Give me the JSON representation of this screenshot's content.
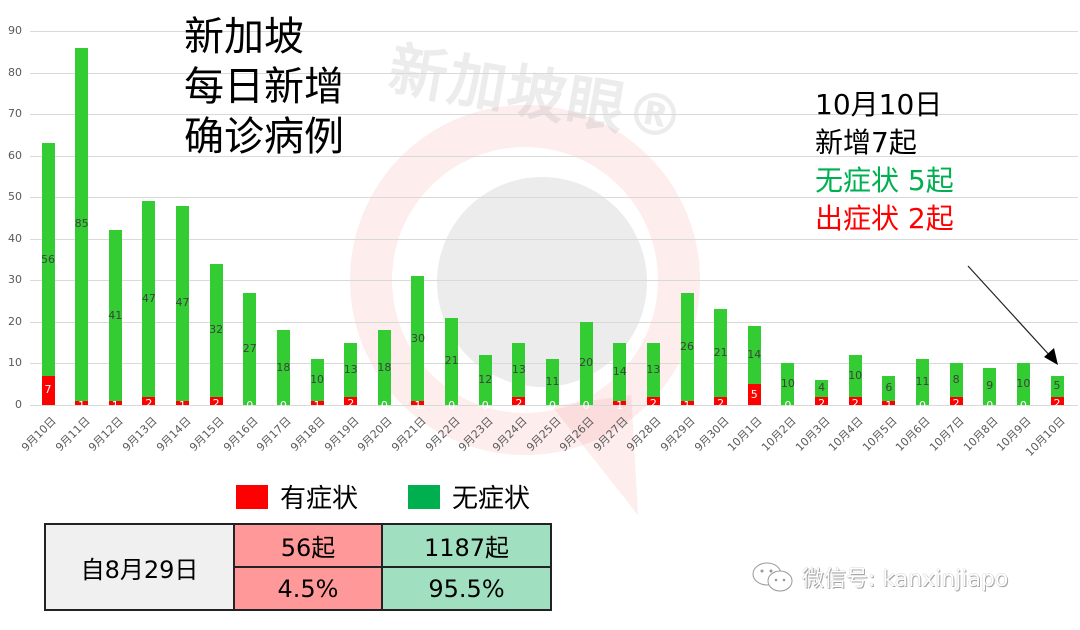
{
  "watermark": {
    "brand_text": "新加坡眼®"
  },
  "title": {
    "line1": "新加坡",
    "line2": "每日新增",
    "line3": "确诊病例"
  },
  "annotation": {
    "line1": "10月10日",
    "line2": "新增7起",
    "line3": "无症状 5起",
    "line4": "出症状 2起"
  },
  "legend": {
    "symptomatic": "有症状",
    "asymptomatic": "无症状"
  },
  "summary_table": {
    "period": "自8月29日",
    "symptomatic_count": "56起",
    "asymptomatic_count": "1187起",
    "symptomatic_pct": "4.5%",
    "asymptomatic_pct": "95.5%"
  },
  "footer": {
    "wechat_label": "微信号: kanxinjiapo"
  },
  "colors": {
    "symptomatic": "#ff0000",
    "asymptomatic": "#33cc33",
    "legend_asymptomatic": "#00b050",
    "table_red": "#ff9999",
    "table_green": "#a0e0c0",
    "table_gray": "#f0f0f0",
    "annotation_green": "#00b050",
    "annotation_red": "#ff0000"
  },
  "chart_data": {
    "type": "bar",
    "stacked": true,
    "title": "新加坡 每日新增 确诊病例",
    "xlabel": "",
    "ylabel": "",
    "ylim": [
      0,
      90
    ],
    "yticks": [
      0,
      10,
      20,
      30,
      40,
      50,
      60,
      70,
      80,
      90
    ],
    "grid": true,
    "legend_position": "bottom",
    "categories": [
      "9月10日",
      "9月11日",
      "9月12日",
      "9月13日",
      "9月14日",
      "9月15日",
      "9月16日",
      "9月17日",
      "9月18日",
      "9月19日",
      "9月20日",
      "9月21日",
      "9月22日",
      "9月23日",
      "9月24日",
      "9月25日",
      "9月26日",
      "9月27日",
      "9月28日",
      "9月29日",
      "9月30日",
      "10月1日",
      "10月2日",
      "10月3日",
      "10月4日",
      "10月5日",
      "10月6日",
      "10月7日",
      "10月8日",
      "10月9日",
      "10月10日"
    ],
    "series": [
      {
        "name": "有症状",
        "color": "#ff0000",
        "values": [
          7,
          1,
          1,
          2,
          1,
          2,
          0,
          0,
          1,
          2,
          0,
          1,
          0,
          0,
          2,
          0,
          0,
          1,
          2,
          1,
          2,
          5,
          0,
          2,
          2,
          1,
          0,
          2,
          0,
          0,
          2
        ]
      },
      {
        "name": "无症状",
        "color": "#33cc33",
        "values": [
          56,
          85,
          41,
          47,
          47,
          32,
          27,
          18,
          10,
          13,
          18,
          30,
          21,
          12,
          13,
          11,
          20,
          14,
          13,
          26,
          21,
          14,
          10,
          4,
          10,
          6,
          11,
          8,
          9,
          10,
          5
        ]
      }
    ],
    "annotations": [
      "10月10日 新增7起 无症状 5起 出症状 2起"
    ]
  }
}
